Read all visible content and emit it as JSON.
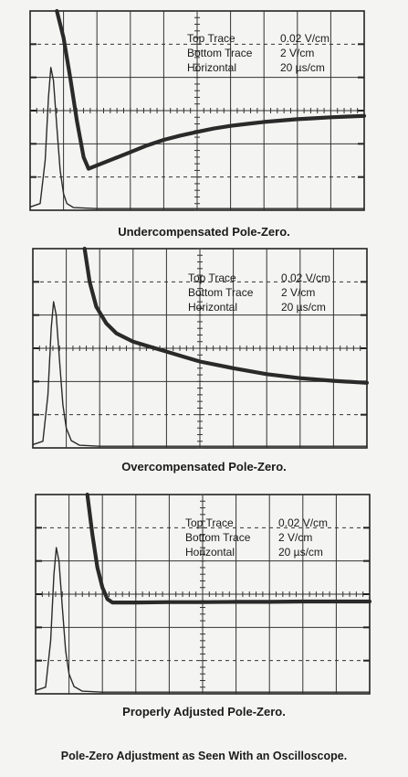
{
  "chart_data": [
    {
      "type": "line",
      "caption": "Undercompensated Pole-Zero.",
      "legend": [
        {
          "label": "Top Trace",
          "value": "0.02 V/cm"
        },
        {
          "label": "Bottom Trace",
          "value": "2 V/cm"
        },
        {
          "label": "Horizontal",
          "value": "20 µs/cm"
        }
      ],
      "grid": {
        "x_divisions": 10,
        "y_divisions": 6
      },
      "series": [
        {
          "values": [
            [
              0.8,
              6
            ],
            [
              1.0,
              5.2
            ],
            [
              1.2,
              4
            ],
            [
              1.4,
              2.7
            ],
            [
              1.6,
              1.6
            ],
            [
              1.75,
              1.25
            ],
            [
              2.0,
              1.35
            ],
            [
              2.5,
              1.55
            ],
            [
              3.0,
              1.75
            ],
            [
              3.5,
              1.95
            ],
            [
              4.0,
              2.12
            ],
            [
              4.5,
              2.25
            ],
            [
              5.0,
              2.36
            ],
            [
              5.5,
              2.46
            ],
            [
              6.0,
              2.54
            ],
            [
              6.5,
              2.6
            ],
            [
              7.0,
              2.66
            ],
            [
              7.5,
              2.7
            ],
            [
              8.0,
              2.74
            ],
            [
              8.5,
              2.77
            ],
            [
              9.0,
              2.8
            ],
            [
              9.5,
              2.82
            ],
            [
              10,
              2.84
            ]
          ]
        },
        {
          "values": [
            [
              0,
              0.1
            ],
            [
              0.3,
              0.2
            ],
            [
              0.45,
              1.5
            ],
            [
              0.55,
              3.4
            ],
            [
              0.62,
              4.3
            ],
            [
              0.7,
              3.9
            ],
            [
              0.8,
              2.5
            ],
            [
              0.9,
              1.2
            ],
            [
              1.0,
              0.5
            ],
            [
              1.1,
              0.2
            ],
            [
              1.3,
              0.08
            ],
            [
              2,
              0.05
            ],
            [
              10,
              0.05
            ]
          ]
        }
      ]
    },
    {
      "type": "line",
      "caption": "Overcompensated Pole-Zero.",
      "legend": [
        {
          "label": "Top Trace",
          "value": "0.02 V/cm"
        },
        {
          "label": "Bottom Trace",
          "value": "2 V/cm"
        },
        {
          "label": "Horizontal",
          "value": "20 µs/cm"
        }
      ],
      "grid": {
        "x_divisions": 10,
        "y_divisions": 6
      },
      "series": [
        {
          "values": [
            [
              1.55,
              6
            ],
            [
              1.7,
              5.0
            ],
            [
              1.9,
              4.25
            ],
            [
              2.2,
              3.75
            ],
            [
              2.5,
              3.45
            ],
            [
              3.0,
              3.2
            ],
            [
              3.5,
              3.05
            ],
            [
              4.0,
              2.9
            ],
            [
              4.5,
              2.75
            ],
            [
              5.0,
              2.6
            ],
            [
              6.0,
              2.4
            ],
            [
              7.0,
              2.22
            ],
            [
              8.0,
              2.1
            ],
            [
              9.0,
              2.02
            ],
            [
              10,
              1.96
            ]
          ]
        },
        {
          "values": [
            [
              0,
              0.1
            ],
            [
              0.3,
              0.2
            ],
            [
              0.45,
              1.6
            ],
            [
              0.55,
              3.6
            ],
            [
              0.62,
              4.4
            ],
            [
              0.7,
              4.0
            ],
            [
              0.8,
              2.6
            ],
            [
              0.9,
              1.3
            ],
            [
              1.0,
              0.6
            ],
            [
              1.15,
              0.22
            ],
            [
              1.4,
              0.08
            ],
            [
              2,
              0.05
            ],
            [
              10,
              0.05
            ]
          ]
        }
      ]
    },
    {
      "type": "line",
      "caption": "Properly Adjusted Pole-Zero.",
      "legend": [
        {
          "label": "Top Trace",
          "value": "0.02 V/cm"
        },
        {
          "label": "Bottom Trace",
          "value": "2 V/cm"
        },
        {
          "label": "Horizontal",
          "value": "20 µs/cm"
        }
      ],
      "grid": {
        "x_divisions": 10,
        "y_divisions": 6
      },
      "series": [
        {
          "values": [
            [
              1.55,
              6
            ],
            [
              1.7,
              4.8
            ],
            [
              1.85,
              3.8
            ],
            [
              2.0,
              3.2
            ],
            [
              2.15,
              2.85
            ],
            [
              2.3,
              2.75
            ],
            [
              2.5,
              2.75
            ],
            [
              3,
              2.75
            ],
            [
              4,
              2.76
            ],
            [
              5,
              2.76
            ],
            [
              6,
              2.77
            ],
            [
              7,
              2.77
            ],
            [
              8,
              2.78
            ],
            [
              9,
              2.78
            ],
            [
              10,
              2.78
            ]
          ]
        },
        {
          "values": [
            [
              0,
              0.1
            ],
            [
              0.3,
              0.2
            ],
            [
              0.45,
              1.6
            ],
            [
              0.55,
              3.6
            ],
            [
              0.62,
              4.4
            ],
            [
              0.7,
              4.0
            ],
            [
              0.8,
              2.6
            ],
            [
              0.9,
              1.3
            ],
            [
              1.0,
              0.6
            ],
            [
              1.15,
              0.22
            ],
            [
              1.4,
              0.08
            ],
            [
              2,
              0.05
            ],
            [
              10,
              0.05
            ]
          ]
        }
      ]
    }
  ],
  "footer": "Pole-Zero Adjustment as Seen With an Oscilloscope."
}
